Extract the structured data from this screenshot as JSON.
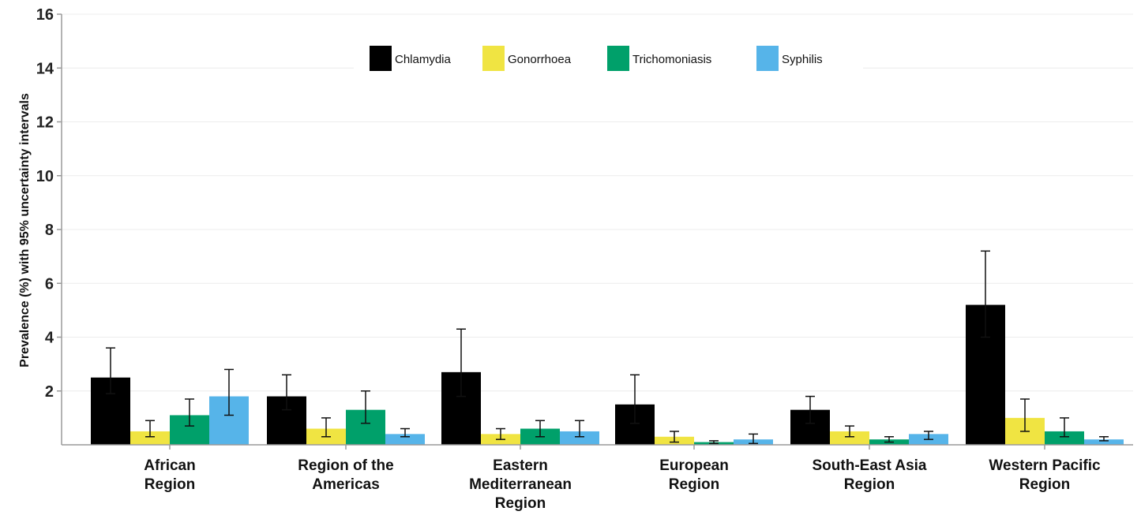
{
  "chart_data": {
    "type": "bar",
    "title": "",
    "xlabel": "",
    "ylabel": "Prevalence (%) with 95% uncertainty intervals",
    "ylim": [
      0,
      16
    ],
    "yticks": [
      2,
      4,
      6,
      8,
      10,
      12,
      14,
      16
    ],
    "grid": true,
    "legend_position": "top-center",
    "categories": [
      [
        "African",
        "Region"
      ],
      [
        "Region of the",
        "Americas"
      ],
      [
        "Eastern",
        "Mediterranean",
        "Region"
      ],
      [
        "European",
        "Region"
      ],
      [
        "South-East Asia",
        "Region"
      ],
      [
        "Western Pacific",
        "Region"
      ]
    ],
    "series": [
      {
        "name": "Chlamydia",
        "color": "#000000",
        "values": [
          2.5,
          1.8,
          2.7,
          1.5,
          1.3,
          5.2
        ],
        "lower": [
          1.9,
          1.3,
          1.8,
          0.8,
          0.8,
          4.0
        ],
        "upper": [
          3.6,
          2.6,
          4.3,
          2.6,
          1.8,
          7.2
        ]
      },
      {
        "name": "Gonorrhoea",
        "color": "#f0e442",
        "values": [
          0.5,
          0.6,
          0.4,
          0.3,
          0.5,
          1.0
        ],
        "lower": [
          0.3,
          0.3,
          0.2,
          0.1,
          0.3,
          0.5
        ],
        "upper": [
          0.9,
          1.0,
          0.6,
          0.5,
          0.7,
          1.7
        ]
      },
      {
        "name": "Trichomoniasis",
        "color": "#00a06a",
        "values": [
          1.1,
          1.3,
          0.6,
          0.1,
          0.2,
          0.5
        ],
        "lower": [
          0.7,
          0.8,
          0.3,
          0.05,
          0.1,
          0.3
        ],
        "upper": [
          1.7,
          2.0,
          0.9,
          0.15,
          0.3,
          1.0
        ]
      },
      {
        "name": "Syphilis",
        "color": "#56b4e9",
        "values": [
          1.8,
          0.4,
          0.5,
          0.2,
          0.4,
          0.2
        ],
        "lower": [
          1.1,
          0.3,
          0.3,
          0.05,
          0.2,
          0.15
        ],
        "upper": [
          2.8,
          0.6,
          0.9,
          0.4,
          0.5,
          0.3
        ]
      }
    ]
  }
}
